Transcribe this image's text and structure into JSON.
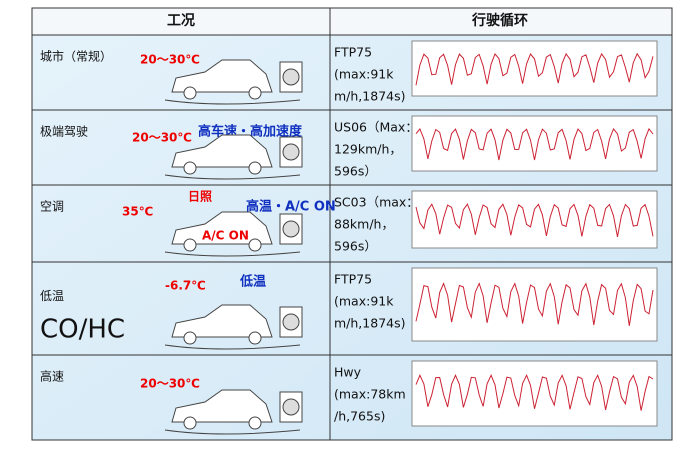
{
  "table": {
    "header": [
      "工况",
      "行驶循环"
    ],
    "rows": [
      {
        "condition": "城市（常规）",
        "temperature": "20～30℃",
        "cycle": [
          "FTP75",
          "(max:91k",
          "m/h,1874s)"
        ]
      },
      {
        "condition": "极端驾驶",
        "temperature": "20～30℃",
        "note": "高车速・高加速度",
        "cycle": [
          "US06（Max：",
          "129km/h，",
          "596s）"
        ]
      },
      {
        "condition": "空调",
        "temperature": "35℃",
        "sun": "日照",
        "note": "高温・A/C ON",
        "car_label": "A/C ON",
        "cycle": [
          "SC03（max：",
          "88km/h，",
          "596s）"
        ]
      },
      {
        "condition": "低温",
        "emission": "CO/HC",
        "temperature": "-6.7℃",
        "note": "低温",
        "cycle": [
          "FTP75",
          "(max:91k",
          "m/h,1874s)"
        ]
      },
      {
        "condition": "高速",
        "temperature": "20～30℃",
        "cycle": [
          "Hwy",
          "(max:78km",
          "/h,765s)"
        ]
      }
    ]
  }
}
